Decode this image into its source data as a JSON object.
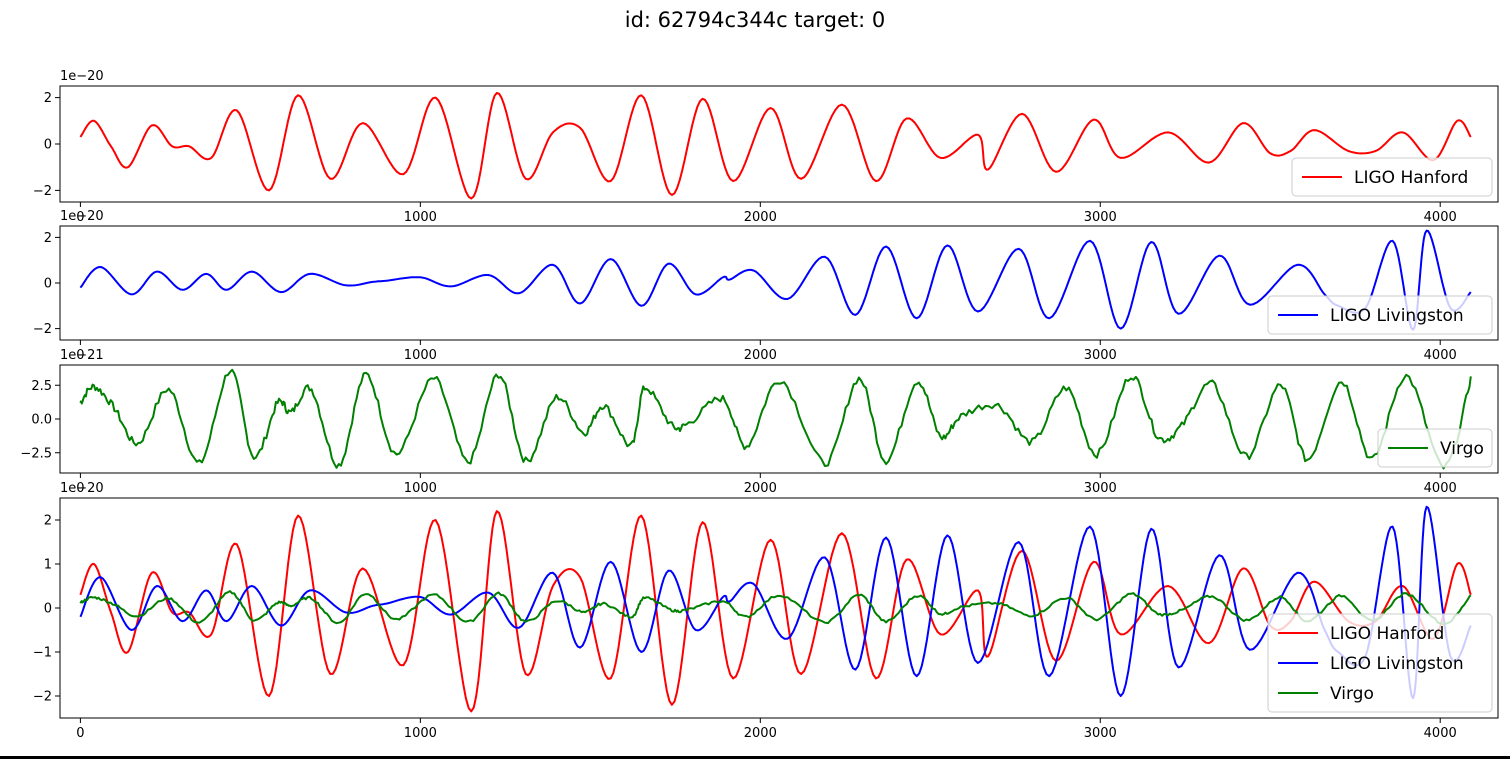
{
  "title": "id: 62794c344c target: 0",
  "chart_data": [
    {
      "type": "line",
      "xlim": [
        -60,
        4170
      ],
      "ylim": [
        -2.5,
        2.5
      ],
      "xticks": [
        0,
        1000,
        2000,
        3000,
        4000
      ],
      "yticks": [
        -2,
        0,
        2
      ],
      "ytick_labels": [
        "−2",
        "0",
        "2"
      ],
      "offset_text": "1e−20",
      "legend": "bottom-right",
      "series": [
        {
          "name": "LIGO Hanford",
          "color": "#ff0000",
          "points": [
            [
              0,
              0.3
            ],
            [
              40,
              1.0
            ],
            [
              90,
              -0.1
            ],
            [
              140,
              -1.0
            ],
            [
              210,
              0.8
            ],
            [
              270,
              -0.1
            ],
            [
              320,
              -0.1
            ],
            [
              385,
              -0.6
            ],
            [
              460,
              1.45
            ],
            [
              555,
              -2.0
            ],
            [
              640,
              2.1
            ],
            [
              735,
              -1.5
            ],
            [
              830,
              0.9
            ],
            [
              950,
              -1.3
            ],
            [
              1045,
              2.0
            ],
            [
              1150,
              -2.35
            ],
            [
              1225,
              2.2
            ],
            [
              1310,
              -1.5
            ],
            [
              1390,
              0.5
            ],
            [
              1470,
              0.7
            ],
            [
              1560,
              -1.6
            ],
            [
              1650,
              2.1
            ],
            [
              1740,
              -2.2
            ],
            [
              1830,
              1.95
            ],
            [
              1920,
              -1.6
            ],
            [
              2030,
              1.55
            ],
            [
              2120,
              -1.5
            ],
            [
              2240,
              1.7
            ],
            [
              2340,
              -1.6
            ],
            [
              2430,
              1.1
            ],
            [
              2530,
              -0.6
            ],
            [
              2640,
              0.4
            ],
            [
              2670,
              -1.1
            ],
            [
              2770,
              1.3
            ],
            [
              2870,
              -1.2
            ],
            [
              2980,
              1.05
            ],
            [
              3060,
              -0.6
            ],
            [
              3200,
              0.5
            ],
            [
              3320,
              -0.8
            ],
            [
              3420,
              0.9
            ],
            [
              3500,
              -0.4
            ],
            [
              3560,
              -0.3
            ],
            [
              3630,
              0.6
            ],
            [
              3730,
              -0.3
            ],
            [
              3810,
              -0.3
            ],
            [
              3890,
              0.5
            ],
            [
              3980,
              -0.7
            ],
            [
              4050,
              1.0
            ],
            [
              4090,
              0.3
            ]
          ]
        }
      ]
    },
    {
      "type": "line",
      "xlim": [
        -60,
        4170
      ],
      "ylim": [
        -2.5,
        2.5
      ],
      "xticks": [
        0,
        1000,
        2000,
        3000,
        4000
      ],
      "yticks": [
        -2,
        0,
        2
      ],
      "ytick_labels": [
        "−2",
        "0",
        "2"
      ],
      "offset_text": "1e−20",
      "legend": "bottom-right",
      "series": [
        {
          "name": "LIGO Livingston",
          "color": "#0000ff",
          "points": [
            [
              0,
              -0.2
            ],
            [
              60,
              0.7
            ],
            [
              150,
              -0.5
            ],
            [
              225,
              0.5
            ],
            [
              300,
              -0.3
            ],
            [
              370,
              0.4
            ],
            [
              430,
              -0.3
            ],
            [
              505,
              0.5
            ],
            [
              590,
              -0.4
            ],
            [
              675,
              0.4
            ],
            [
              780,
              -0.1
            ],
            [
              860,
              0.05
            ],
            [
              900,
              0.1
            ],
            [
              1000,
              0.25
            ],
            [
              1090,
              -0.15
            ],
            [
              1200,
              0.35
            ],
            [
              1290,
              -0.45
            ],
            [
              1390,
              0.8
            ],
            [
              1470,
              -0.9
            ],
            [
              1560,
              1.05
            ],
            [
              1650,
              -1.0
            ],
            [
              1730,
              0.85
            ],
            [
              1810,
              -0.5
            ],
            [
              1890,
              0.25
            ],
            [
              1910,
              0.15
            ],
            [
              1980,
              0.55
            ],
            [
              2080,
              -0.7
            ],
            [
              2190,
              1.15
            ],
            [
              2280,
              -1.4
            ],
            [
              2370,
              1.6
            ],
            [
              2460,
              -1.55
            ],
            [
              2550,
              1.65
            ],
            [
              2640,
              -1.25
            ],
            [
              2760,
              1.5
            ],
            [
              2850,
              -1.55
            ],
            [
              2970,
              1.85
            ],
            [
              3060,
              -2.0
            ],
            [
              3150,
              1.8
            ],
            [
              3230,
              -1.35
            ],
            [
              3350,
              1.2
            ],
            [
              3440,
              -0.95
            ],
            [
              3580,
              0.8
            ],
            [
              3660,
              -0.5
            ],
            [
              3700,
              -1.0
            ],
            [
              3780,
              -1.1
            ],
            [
              3860,
              1.85
            ],
            [
              3920,
              -2.05
            ],
            [
              3960,
              2.3
            ],
            [
              4030,
              -1.1
            ],
            [
              4090,
              -0.4
            ]
          ]
        }
      ]
    },
    {
      "type": "line",
      "xlim": [
        -60,
        4170
      ],
      "ylim": [
        -4.0,
        4.0
      ],
      "xticks": [
        0,
        1000,
        2000,
        3000,
        4000
      ],
      "yticks": [
        -2.5,
        0,
        2.5
      ],
      "ytick_labels": [
        "−2.5",
        "0.0",
        "2.5"
      ],
      "offset_text": "1e−21",
      "legend": "bottom-right",
      "series": [
        {
          "name": "Virgo",
          "color": "#008000",
          "points": [
            [
              0,
              1.2
            ],
            [
              40,
              2.4
            ],
            [
              100,
              0.8
            ],
            [
              170,
              -1.8
            ],
            [
              260,
              2.2
            ],
            [
              350,
              -3.3
            ],
            [
              440,
              3.6
            ],
            [
              510,
              -2.8
            ],
            [
              580,
              1.2
            ],
            [
              620,
              0.5
            ],
            [
              680,
              2.2
            ],
            [
              760,
              -3.4
            ],
            [
              840,
              3.3
            ],
            [
              930,
              -2.6
            ],
            [
              1040,
              3.0
            ],
            [
              1140,
              -3.2
            ],
            [
              1230,
              3.3
            ],
            [
              1310,
              -3.1
            ],
            [
              1400,
              1.6
            ],
            [
              1480,
              -1.0
            ],
            [
              1540,
              1.0
            ],
            [
              1620,
              -2.0
            ],
            [
              1660,
              2.3
            ],
            [
              1740,
              -0.5
            ],
            [
              1790,
              -0.3
            ],
            [
              1890,
              1.5
            ],
            [
              1960,
              -2.0
            ],
            [
              2060,
              2.9
            ],
            [
              2190,
              -3.3
            ],
            [
              2290,
              3.0
            ],
            [
              2370,
              -3.1
            ],
            [
              2460,
              2.8
            ],
            [
              2530,
              -1.3
            ],
            [
              2590,
              0.2
            ],
            [
              2700,
              1.0
            ],
            [
              2800,
              -1.7
            ],
            [
              2900,
              2.3
            ],
            [
              2990,
              -2.6
            ],
            [
              3090,
              3.2
            ],
            [
              3170,
              -1.3
            ],
            [
              3240,
              -0.5
            ],
            [
              3330,
              2.6
            ],
            [
              3430,
              -2.8
            ],
            [
              3530,
              2.5
            ],
            [
              3610,
              -3.0
            ],
            [
              3710,
              2.8
            ],
            [
              3800,
              -3.0
            ],
            [
              3900,
              3.2
            ],
            [
              4010,
              -3.6
            ],
            [
              4090,
              3.0
            ]
          ]
        }
      ]
    },
    {
      "type": "line",
      "xlim": [
        -60,
        4170
      ],
      "ylim": [
        -2.5,
        2.5
      ],
      "xticks": [
        0,
        1000,
        2000,
        3000,
        4000
      ],
      "yticks": [
        -2,
        -1,
        0,
        1,
        2
      ],
      "ytick_labels": [
        "−2",
        "−1",
        "0",
        "1",
        "2"
      ],
      "offset_text": "1e−20",
      "legend": "bottom-right",
      "series": [
        {
          "name": "LIGO Hanford",
          "color": "#ff0000",
          "ref": 0
        },
        {
          "name": "LIGO Livingston",
          "color": "#0000ff",
          "ref": 1
        },
        {
          "name": "Virgo",
          "color": "#008000",
          "ref": 2,
          "scale": 0.1
        }
      ]
    }
  ]
}
